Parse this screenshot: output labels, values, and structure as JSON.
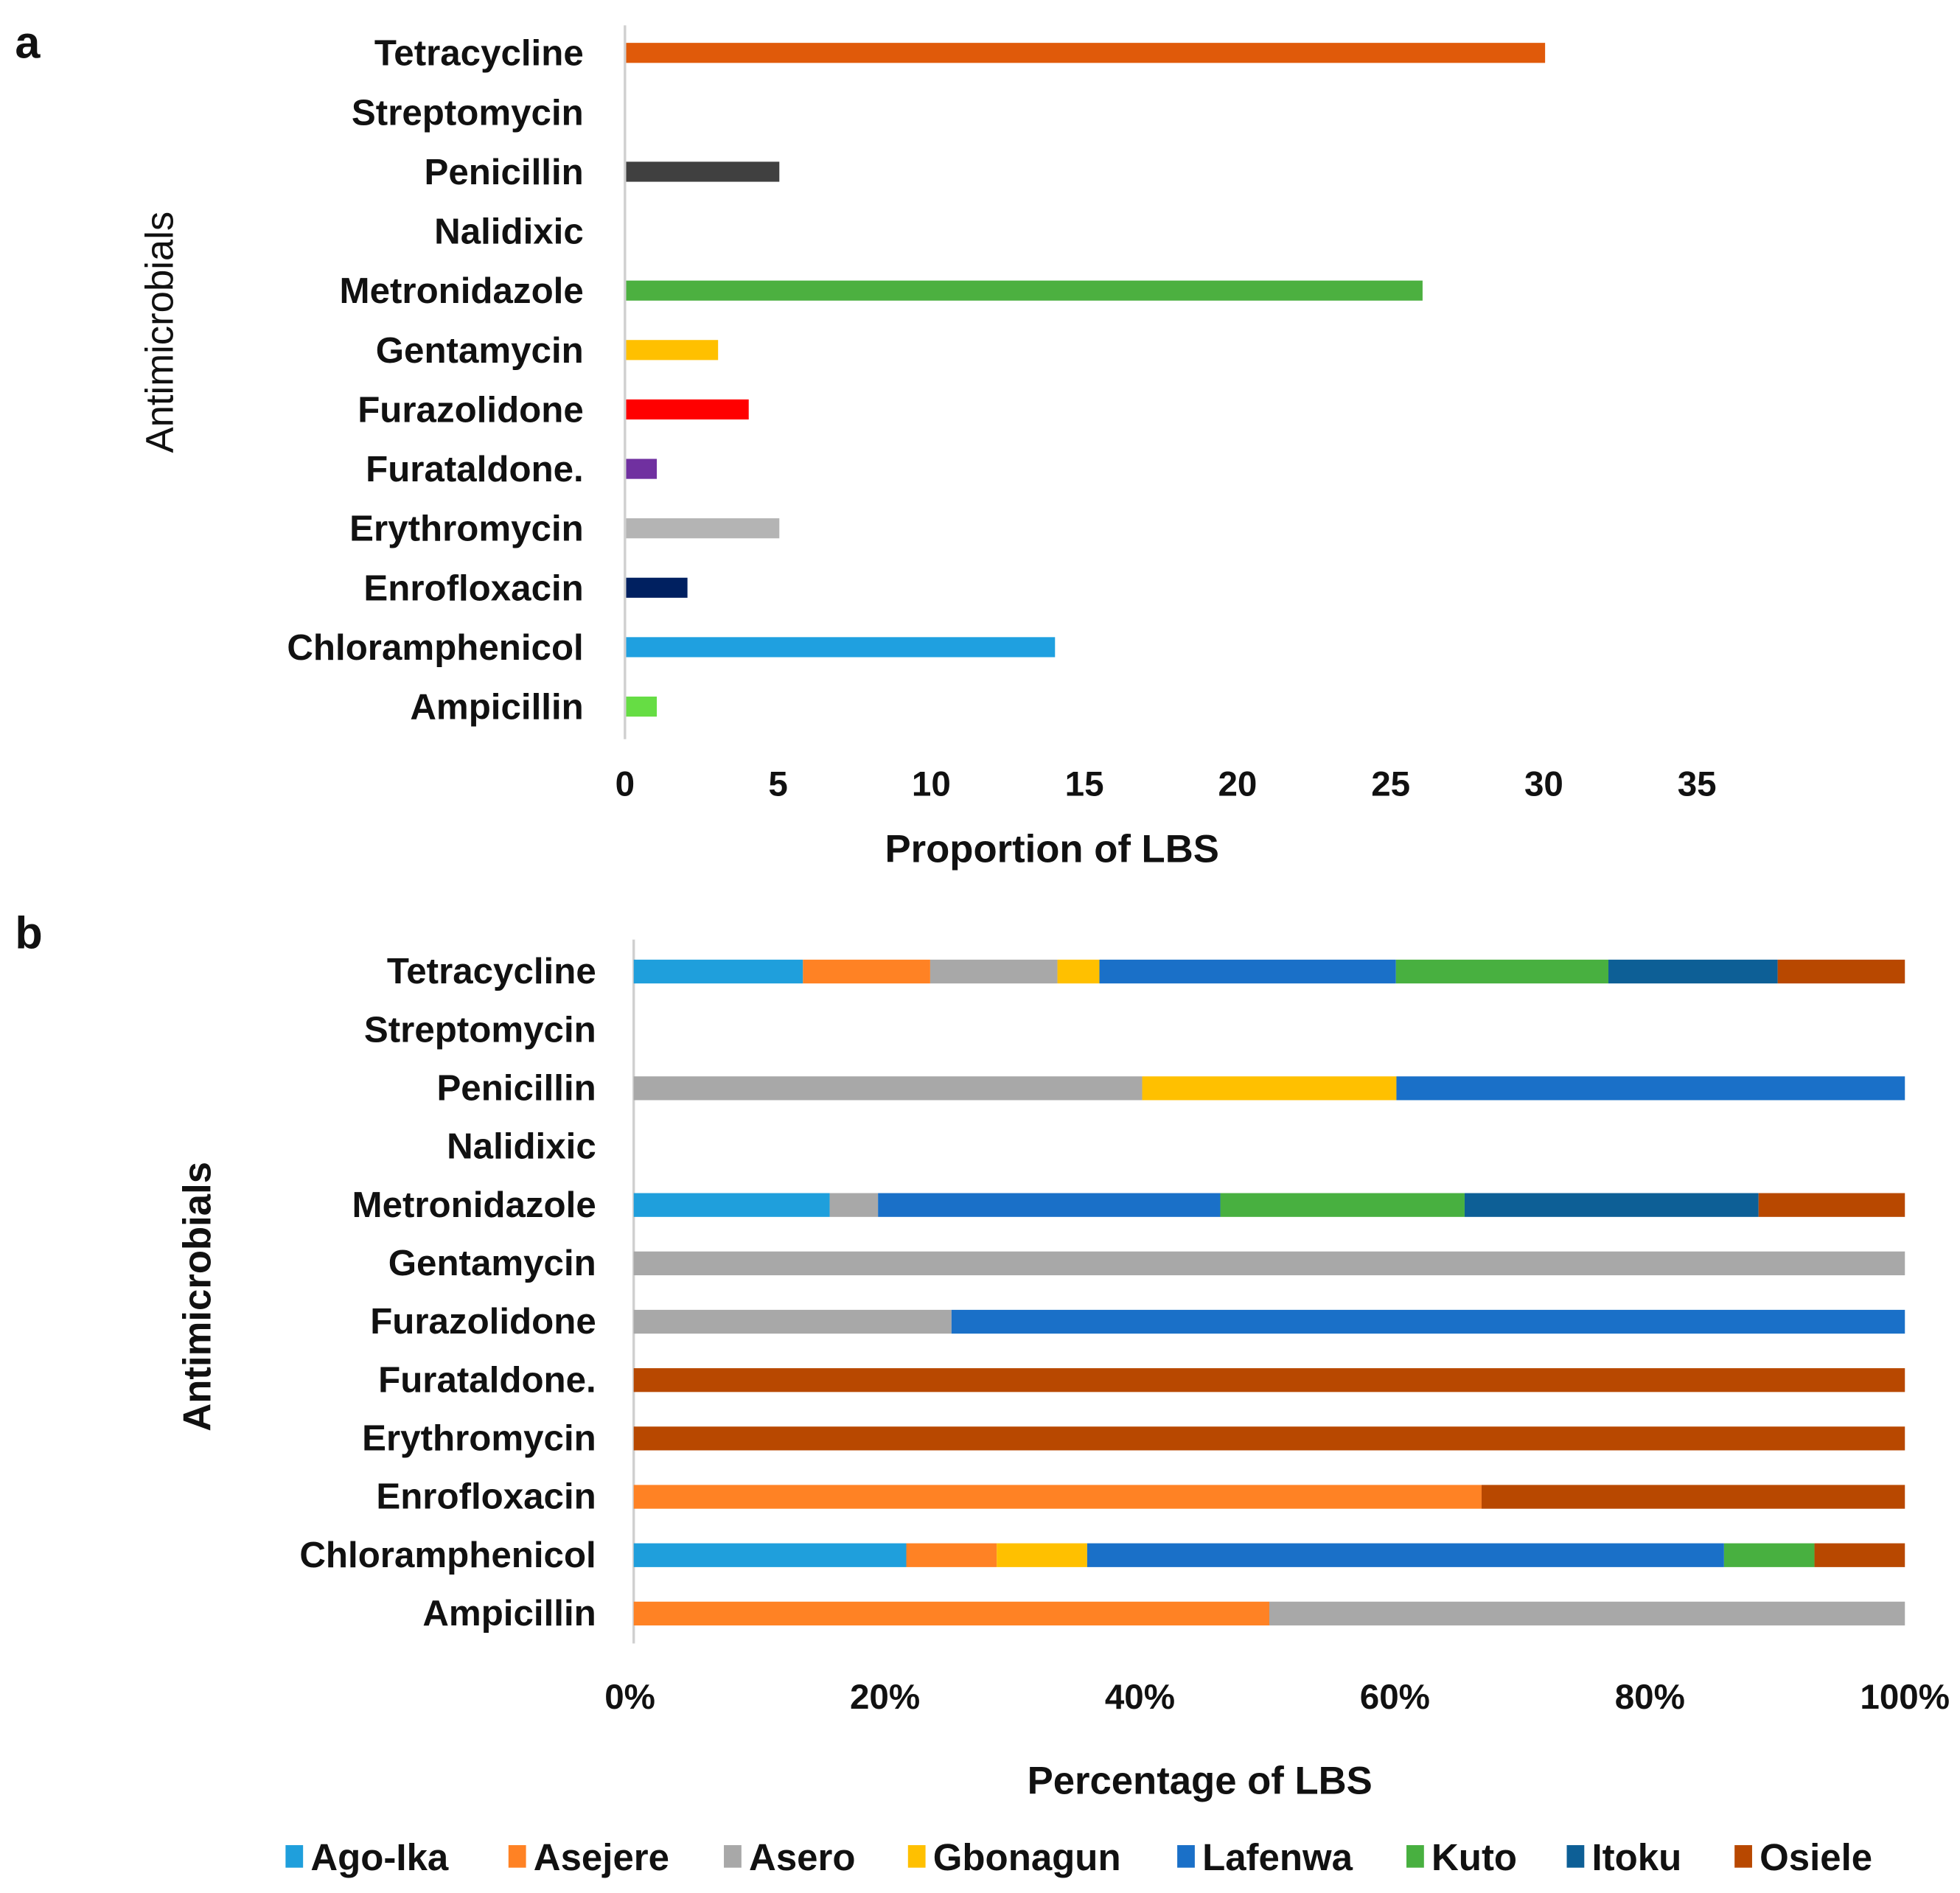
{
  "chart_data": [
    {
      "panel_label": "a",
      "type": "bar",
      "orientation": "horizontal",
      "categories": [
        "Tetracycline",
        "Streptomycin",
        "Penicillin",
        "Nalidixic",
        "Metronidazole",
        "Gentamycin",
        "Furazolidone",
        "Furataldone.",
        "Erythromycin",
        "Enrofloxacin",
        "Chloramphenicol",
        "Ampicillin"
      ],
      "values": [
        30,
        0,
        5,
        0,
        26,
        3,
        4,
        1,
        5,
        2,
        14,
        1
      ],
      "colors": [
        "#e05a0a",
        "#ffffff",
        "#404040",
        "#ffffff",
        "#4cb040",
        "#ffc000",
        "#ff0000",
        "#7030a0",
        "#b4b4b4",
        "#002060",
        "#1fa0e0",
        "#66dd44"
      ],
      "xlabel": "Proportion of LBS",
      "ylabel": "Antimicrobials",
      "xlim": [
        0,
        35
      ],
      "xticks": [
        "0",
        "5",
        "10",
        "15",
        "20",
        "25",
        "30",
        "35"
      ],
      "grid": false
    },
    {
      "panel_label": "b",
      "type": "bar",
      "orientation": "horizontal",
      "stacked": "percent",
      "categories": [
        "Tetracycline",
        "Streptomycin",
        "Penicillin",
        "Nalidixic",
        "Metronidazole",
        "Gentamycin",
        "Furazolidone",
        "Furataldone.",
        "Erythromycin",
        "Enrofloxacin",
        "Chloramphenicol",
        "Ampicillin"
      ],
      "series": [
        {
          "name": "Ago-Ika",
          "color": "#1f9fdc",
          "values": [
            13.3,
            0,
            0,
            0,
            15.4,
            0,
            0,
            0,
            0,
            0,
            21.4,
            0
          ]
        },
        {
          "name": "Asejere",
          "color": "#ff8224",
          "values": [
            10,
            0,
            0,
            0,
            0,
            0,
            0,
            0,
            0,
            66.7,
            7.1,
            50
          ]
        },
        {
          "name": "Asero",
          "color": "#a8a8a8",
          "values": [
            10,
            0,
            40,
            0,
            3.8,
            100,
            25,
            0,
            0,
            0,
            0,
            50
          ]
        },
        {
          "name": "Gbonagun",
          "color": "#ffc000",
          "values": [
            3.3,
            0,
            20,
            0,
            0,
            0,
            0,
            0,
            0,
            0,
            7.1,
            0
          ]
        },
        {
          "name": "Lafenwa",
          "color": "#1a70c8",
          "values": [
            23.3,
            0,
            40,
            0,
            26.9,
            0,
            75,
            0,
            0,
            0,
            50,
            0
          ]
        },
        {
          "name": "Kuto",
          "color": "#48b040",
          "values": [
            16.7,
            0,
            0,
            0,
            19.2,
            0,
            0,
            0,
            0,
            0,
            7.1,
            0
          ]
        },
        {
          "name": "Itoku",
          "color": "#0d5f96",
          "values": [
            13.3,
            0,
            0,
            0,
            23.1,
            0,
            0,
            0,
            0,
            0,
            0,
            0
          ]
        },
        {
          "name": "Osiele",
          "color": "#b84800",
          "values": [
            10,
            0,
            0,
            0,
            11.5,
            0,
            0,
            100,
            100,
            33.3,
            7.1,
            0
          ]
        }
      ],
      "xlabel": "Percentage of LBS",
      "ylabel": "Antimicrobials",
      "xlim": [
        0,
        100
      ],
      "xticks": [
        "0%",
        "20%",
        "40%",
        "60%",
        "80%",
        "100%"
      ],
      "legend_position": "bottom",
      "grid": false
    }
  ]
}
